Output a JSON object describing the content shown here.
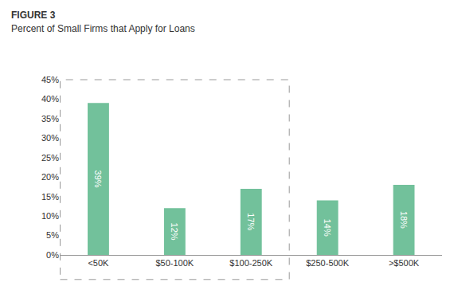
{
  "chart_data": {
    "type": "bar",
    "title": "FIGURE 3",
    "subtitle": "Percent of Small Firms that Apply for Loans",
    "categories": [
      "<50K",
      "$50-100K",
      "$100-250K",
      "$250-500K",
      ">$500K"
    ],
    "values": [
      39,
      12,
      17,
      14,
      18
    ],
    "value_labels": [
      "39%",
      "12%",
      "17%",
      "14%",
      "18%"
    ],
    "data_labels": true,
    "color": "#72c19b",
    "ylim": [
      0,
      45
    ],
    "yticks": [
      {
        "value": 0,
        "label": "0%"
      },
      {
        "value": 5,
        "label": "5%"
      },
      {
        "value": 10,
        "label": "10%"
      },
      {
        "value": 15,
        "label": "15%"
      },
      {
        "value": 20,
        "label": "20%"
      },
      {
        "value": 25,
        "label": "25%"
      },
      {
        "value": 30,
        "label": "30%"
      },
      {
        "value": 35,
        "label": "35%"
      },
      {
        "value": 40,
        "label": "40%"
      },
      {
        "value": 45,
        "label": "45%"
      }
    ],
    "grid": false
  }
}
